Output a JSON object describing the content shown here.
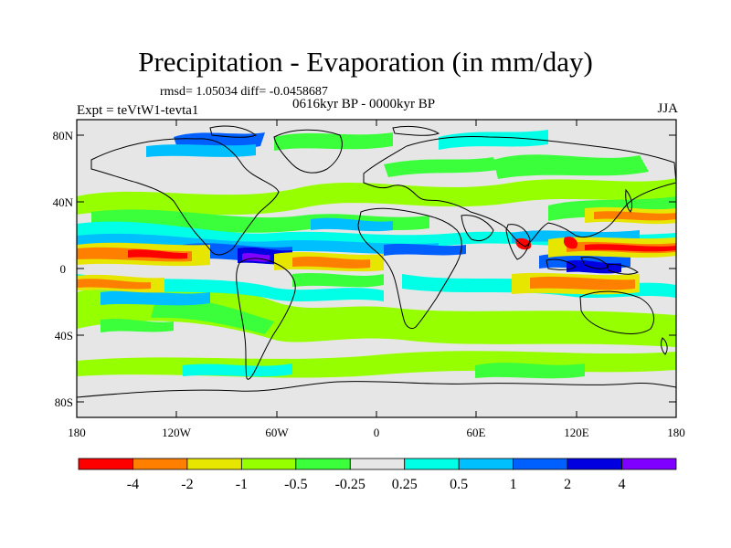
{
  "title": "Precipitation - Evaporation (in mm/day)",
  "stats": "rmsd= 1.05034 diff= -0.0458687",
  "period": "0616kyr BP - 0000kyr BP",
  "experiment": "Expt = teVtW1-tevta1",
  "season": "JJA",
  "lat_ticks": [
    "80N",
    "40N",
    "0",
    "40S",
    "80S"
  ],
  "lon_ticks": [
    "180",
    "120W",
    "60W",
    "0",
    "60E",
    "120E",
    "180"
  ],
  "colorbar": {
    "colors": [
      "#ff0000",
      "#ff8000",
      "#e6e600",
      "#96ff00",
      "#3cff3c",
      "#e6e6e6",
      "#00ffe6",
      "#00bfff",
      "#0060ff",
      "#0000e0",
      "#7f00ff"
    ],
    "labels": [
      "-4",
      "-2",
      "-1",
      "-0.5",
      "-0.25",
      "0.25",
      "0.5",
      "1",
      "2",
      "4"
    ]
  }
}
